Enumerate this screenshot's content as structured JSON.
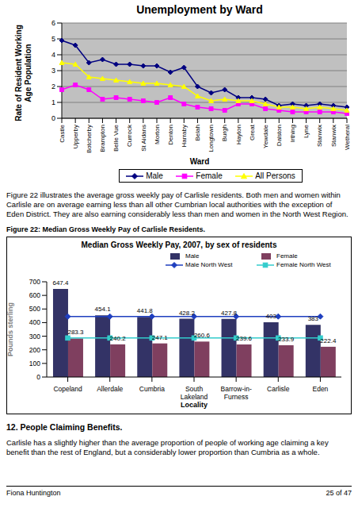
{
  "chart_data": [
    {
      "type": "line",
      "title": "Unemployment by Ward",
      "y_label": "Rate of Resident Working Age Population",
      "x_label": "Ward",
      "categories": [
        "Castle",
        "Upperby",
        "Botcherby",
        "Brampton",
        "Belle Vue",
        "Currock",
        "St Aidans",
        "Morton",
        "Denton",
        "Harraby",
        "Belah",
        "Longtown",
        "Burgh",
        "Hayton",
        "Great",
        "Yewdale",
        "Dalston",
        "Irthing",
        "Lyne",
        "Stanwix",
        "Stanwix",
        "Wetheral"
      ],
      "series": [
        {
          "name": "Male",
          "color": "#000080",
          "marker": "diamond",
          "values": [
            4.9,
            4.6,
            3.5,
            3.7,
            3.4,
            3.4,
            3.3,
            3.3,
            2.9,
            3.2,
            2.0,
            1.6,
            1.8,
            1.3,
            1.3,
            1.2,
            0.8,
            0.9,
            0.8,
            0.9,
            0.8,
            0.7
          ]
        },
        {
          "name": "Female",
          "color": "#FF00FF",
          "marker": "square",
          "values": [
            1.8,
            2.1,
            1.8,
            1.2,
            1.3,
            1.2,
            1.1,
            1.0,
            1.3,
            0.9,
            0.7,
            0.6,
            0.5,
            0.9,
            0.9,
            0.6,
            0.5,
            0.4,
            0.4,
            0.4,
            0.4,
            0.3
          ]
        },
        {
          "name": "All Persons",
          "color": "#FFFF00",
          "marker": "triangle",
          "values": [
            3.5,
            3.4,
            2.6,
            2.5,
            2.4,
            2.3,
            2.2,
            2.2,
            2.1,
            2.0,
            1.4,
            1.1,
            1.2,
            1.1,
            1.1,
            0.9,
            0.7,
            0.7,
            0.6,
            0.7,
            0.6,
            0.5
          ]
        }
      ],
      "ylim": [
        0,
        6
      ],
      "yticks": [
        0,
        1,
        2,
        3,
        4,
        5,
        6
      ],
      "grid": true,
      "legend": "bottom"
    },
    {
      "type": "bar",
      "title": "Median Gross Weekly Pay, 2007, by sex of residents",
      "y_label": "Pounds sterling",
      "x_label": "Locality",
      "categories": [
        "Copeland",
        "Allerdale",
        "Cumbria",
        "South Lakeland",
        "Barrow-in-Furness",
        "Carlisle",
        "Eden"
      ],
      "series": [
        {
          "name": "Male",
          "type": "bar",
          "color": "#333366",
          "data_labels": true,
          "values": [
            647.4,
            454.1,
            441.8,
            428.2,
            427.8,
            403,
            383
          ]
        },
        {
          "name": "Female",
          "type": "bar",
          "color": "#7F3F5F",
          "data_labels": true,
          "values": [
            283.3,
            240.2,
            247.1,
            260.6,
            239.6,
            233.9,
            222.4
          ]
        },
        {
          "name": "Male North West",
          "type": "line",
          "color": "#1F3FBF",
          "marker": "diamond",
          "values": [
            445,
            445,
            445,
            445,
            445,
            445,
            445
          ]
        },
        {
          "name": "Female North West",
          "type": "line",
          "color": "#33CCCC",
          "marker": "square",
          "values": [
            287,
            287,
            287,
            287,
            287,
            287,
            287
          ]
        }
      ],
      "ylim": [
        0,
        700
      ],
      "yticks": [
        0,
        100,
        200,
        300,
        400,
        500,
        600,
        700
      ],
      "grid": false,
      "legend": "top right"
    }
  ],
  "document": {
    "paragraph_1": "Figure 22 illustrates the average gross weekly pay of Carlisle residents. Both men and women within Carlisle are on average earning less than all other Cumbrian local authorities with the exception of Eden District. They are also earning considerably less than men and women in the North West Region.",
    "figure_caption": "Figure 22: Median Gross Weekly Pay of Carlisle Residents.",
    "heading": "12. People Claiming Benefits.",
    "paragraph_2": "Carlisle has a slightly higher than the average proportion of people of working age claiming a key benefit than the rest of England, but a considerably lower proportion than Cumbria as a whole.",
    "footer": {
      "author": "Fiona Huntington",
      "page": "25 of 47"
    }
  }
}
